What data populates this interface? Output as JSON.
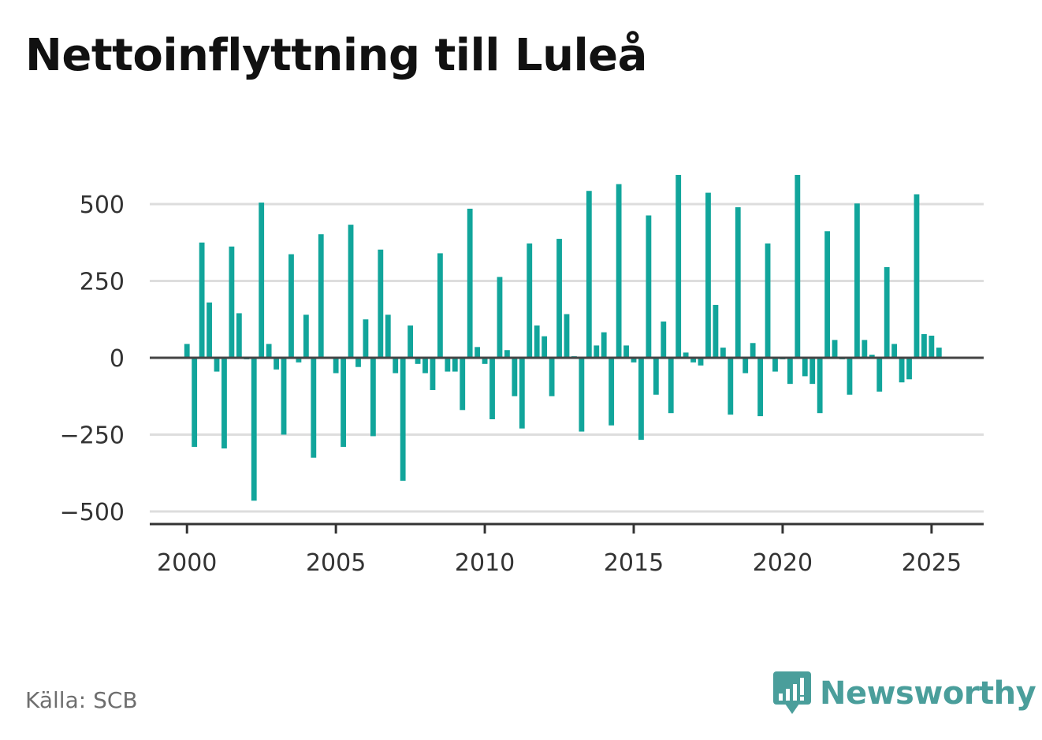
{
  "title": "Nettoinflyttning till Luleå",
  "source": "Källa: SCB",
  "brand": {
    "name": "Newsworthy",
    "icon": "newsworthy-logo-icon",
    "color": "#4a9e9b"
  },
  "colors": {
    "bar": "#11a59b",
    "grid": "#dddddd",
    "zero_line": "#444444",
    "axis": "#333333"
  },
  "chart_data": {
    "type": "bar",
    "title": "Nettoinflyttning till Luleå",
    "xlabel": "",
    "ylabel": "",
    "x_start": 2000.0,
    "x_step": 0.25,
    "ylim": [
      -525,
      600
    ],
    "xlim": [
      1998.75,
      2026.75
    ],
    "yticks": [
      500,
      250,
      0,
      -250,
      -500
    ],
    "ytick_labels": [
      "500",
      "250",
      "0",
      "−250",
      "−500"
    ],
    "xticks": [
      2000,
      2005,
      2010,
      2015,
      2020,
      2025
    ],
    "xtick_labels": [
      "2000",
      "2005",
      "2010",
      "2015",
      "2020",
      "2025"
    ],
    "grid": true,
    "values": [
      45,
      -290,
      375,
      180,
      -45,
      -295,
      362,
      145,
      -5,
      -465,
      505,
      45,
      -38,
      -250,
      337,
      -15,
      140,
      -325,
      402,
      0,
      -50,
      -290,
      433,
      -30,
      125,
      -255,
      352,
      140,
      -50,
      -400,
      105,
      -20,
      -50,
      -105,
      340,
      -45,
      -45,
      -170,
      485,
      35,
      -20,
      -200,
      263,
      25,
      -125,
      -230,
      372,
      105,
      70,
      -125,
      387,
      142,
      5,
      -240,
      543,
      40,
      83,
      -220,
      565,
      40,
      -15,
      -267,
      463,
      -120,
      118,
      -180,
      595,
      17,
      -15,
      -25,
      537,
      172,
      33,
      -185,
      490,
      -50,
      48,
      -190,
      372,
      -45,
      -5,
      -85,
      595,
      -60,
      -85,
      -180,
      412,
      58,
      -5,
      -120,
      502,
      58,
      10,
      -110,
      295,
      45,
      -80,
      -70,
      532,
      77,
      72,
      33
    ]
  }
}
